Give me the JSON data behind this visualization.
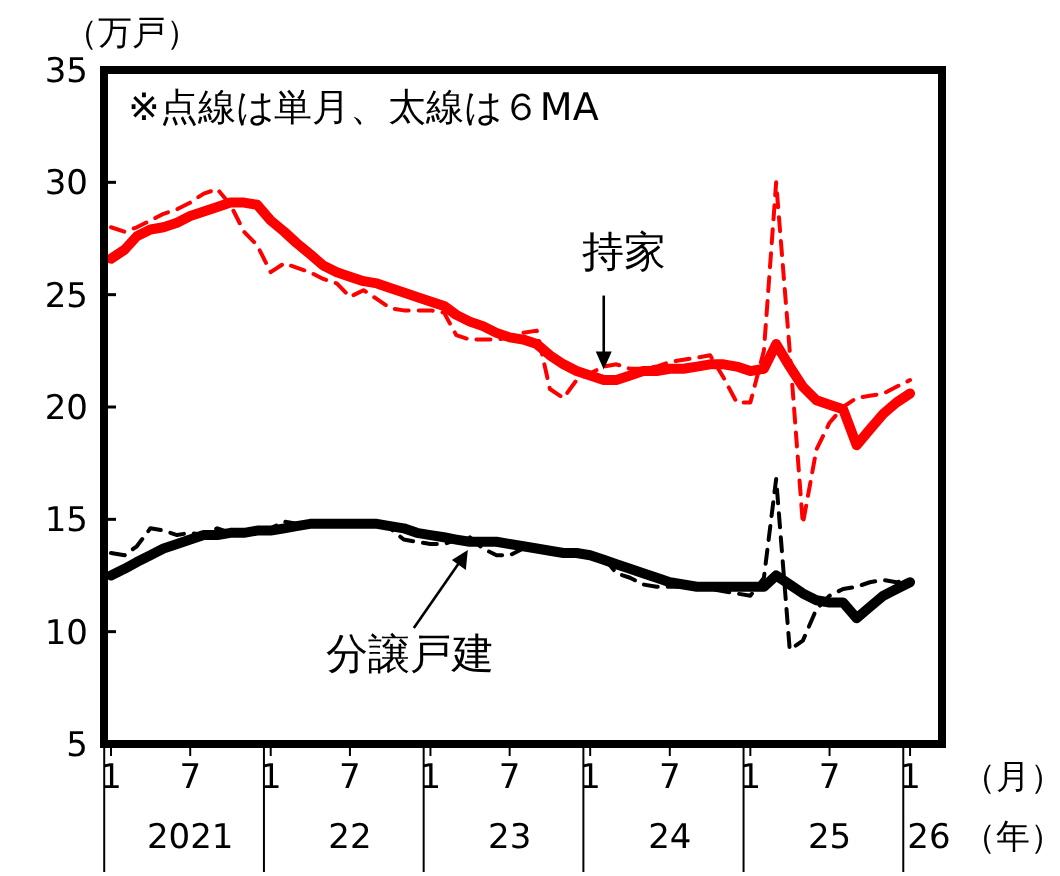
{
  "chart_data": {
    "type": "line",
    "ylabel": "（万戸）",
    "xlabel": "（月）",
    "x": [
      "2021-01",
      "2021-02",
      "2021-03",
      "2021-04",
      "2021-05",
      "2021-06",
      "2021-07",
      "2021-08",
      "2021-09",
      "2021-10",
      "2021-11",
      "2021-12",
      "2022-01",
      "2022-02",
      "2022-03",
      "2022-04",
      "2022-05",
      "2022-06",
      "2022-07",
      "2022-08",
      "2022-09",
      "2022-10",
      "2022-11",
      "2022-12",
      "2023-01",
      "2023-02",
      "2023-03",
      "2023-04",
      "2023-05",
      "2023-06",
      "2023-07",
      "2023-08",
      "2023-09",
      "2023-10",
      "2023-11",
      "2023-12",
      "2024-01",
      "2024-02",
      "2024-03",
      "2024-04",
      "2024-05",
      "2024-06",
      "2024-07",
      "2024-08",
      "2024-09",
      "2024-10",
      "2024-11",
      "2024-12",
      "2025-01",
      "2025-02",
      "2025-03",
      "2025-04",
      "2025-05",
      "2025-06",
      "2025-07",
      "2025-08",
      "2025-09",
      "2025-10",
      "2025-11",
      "2025-12",
      "2026-01"
    ],
    "series": [
      {
        "color": "#ff0000",
        "line_style": "dashed",
        "values": [
          28.0,
          27.8,
          28.0,
          28.3,
          28.6,
          28.8,
          29.1,
          29.5,
          29.7,
          29.0,
          27.8,
          27.2,
          26.0,
          26.4,
          26.2,
          26.0,
          25.7,
          25.5,
          24.9,
          25.2,
          24.8,
          24.4,
          24.3,
          24.3,
          24.3,
          24.2,
          23.2,
          23.0,
          23.0,
          23.0,
          23.1,
          23.3,
          23.4,
          20.8,
          20.4,
          21.2,
          21.5,
          21.8,
          21.9,
          21.7,
          21.7,
          21.8,
          22.0,
          22.1,
          22.2,
          22.3,
          21.3,
          20.2,
          20.2,
          22.5,
          30.0,
          22.5,
          14.8,
          18.1,
          19.3,
          20.0,
          20.4,
          20.5,
          20.6,
          20.9,
          21.2
        ]
      },
      {
        "color": "#ff0000",
        "line_style": "solid",
        "values": [
          26.6,
          27.0,
          27.6,
          27.9,
          28.0,
          28.2,
          28.5,
          28.7,
          28.9,
          29.1,
          29.1,
          29.0,
          28.3,
          27.8,
          27.3,
          26.8,
          26.3,
          26.0,
          25.8,
          25.6,
          25.5,
          25.3,
          25.1,
          24.9,
          24.7,
          24.5,
          24.1,
          23.8,
          23.6,
          23.3,
          23.1,
          23.0,
          22.8,
          22.3,
          21.9,
          21.6,
          21.4,
          21.2,
          21.2,
          21.4,
          21.6,
          21.6,
          21.7,
          21.7,
          21.8,
          21.9,
          21.9,
          21.8,
          21.6,
          21.7,
          22.8,
          21.8,
          20.9,
          20.3,
          20.1,
          19.9,
          18.3,
          19.0,
          19.7,
          20.2,
          20.6
        ]
      },
      {
        "color": "#000000",
        "line_style": "dashed",
        "values": [
          13.5,
          13.4,
          13.8,
          14.6,
          14.5,
          14.3,
          14.4,
          14.3,
          14.6,
          14.4,
          14.5,
          14.5,
          14.6,
          14.9,
          14.8,
          14.7,
          14.8,
          14.7,
          14.8,
          14.9,
          14.7,
          14.6,
          14.1,
          14.0,
          13.9,
          13.9,
          14.1,
          14.2,
          13.7,
          13.4,
          13.4,
          13.7,
          13.6,
          13.5,
          13.5,
          13.4,
          13.3,
          13.3,
          12.6,
          12.4,
          12.1,
          12.0,
          12.0,
          12.0,
          11.9,
          11.9,
          11.8,
          11.7,
          11.6,
          12.4,
          16.8,
          9.2,
          9.6,
          11.0,
          11.6,
          11.9,
          12.0,
          12.2,
          12.3,
          12.2,
          12.3
        ]
      },
      {
        "color": "#000000",
        "line_style": "solid",
        "values": [
          12.5,
          12.8,
          13.1,
          13.4,
          13.7,
          13.9,
          14.1,
          14.3,
          14.3,
          14.4,
          14.4,
          14.5,
          14.5,
          14.6,
          14.7,
          14.8,
          14.8,
          14.8,
          14.8,
          14.8,
          14.8,
          14.7,
          14.6,
          14.4,
          14.3,
          14.2,
          14.1,
          14.0,
          14.0,
          14.0,
          13.9,
          13.8,
          13.7,
          13.6,
          13.5,
          13.5,
          13.4,
          13.2,
          13.0,
          12.8,
          12.6,
          12.4,
          12.2,
          12.1,
          12.0,
          12.0,
          12.0,
          12.0,
          12.0,
          12.0,
          12.5,
          12.1,
          11.7,
          11.4,
          11.3,
          11.3,
          10.6,
          11.1,
          11.6,
          11.9,
          12.2
        ]
      }
    ],
    "annotations": [
      "※点線は単月、太線は６MA",
      {
        "text": "持家",
        "x": "2024-02",
        "y": 21.4
      },
      {
        "text": "分譲戸建",
        "x": "2023-04",
        "y": 13.9
      },
      "（年）"
    ],
    "xlim": [
      "2020-12-16",
      "2026-03-15"
    ],
    "xticks": [
      {
        "value": "2021-01",
        "label": "1"
      },
      {
        "value": "2021-07",
        "label": "7\n2021"
      },
      {
        "value": "2022-01",
        "label": "1"
      },
      {
        "value": "2022-07",
        "label": "7\n22"
      },
      {
        "value": "2023-01",
        "label": "1"
      },
      {
        "value": "2023-07",
        "label": "7\n23"
      },
      {
        "value": "2024-01",
        "label": "1"
      },
      {
        "value": "2024-07",
        "label": "7\n24"
      },
      {
        "value": "2025-01",
        "label": "1"
      },
      {
        "value": "2025-07",
        "label": "7\n25"
      },
      {
        "value": "2026-01",
        "label": "1\n26"
      }
    ],
    "ylim": [
      5,
      35
    ],
    "yticks": [
      5,
      10,
      15,
      20,
      25,
      30,
      35
    ],
    "grid": false
  }
}
